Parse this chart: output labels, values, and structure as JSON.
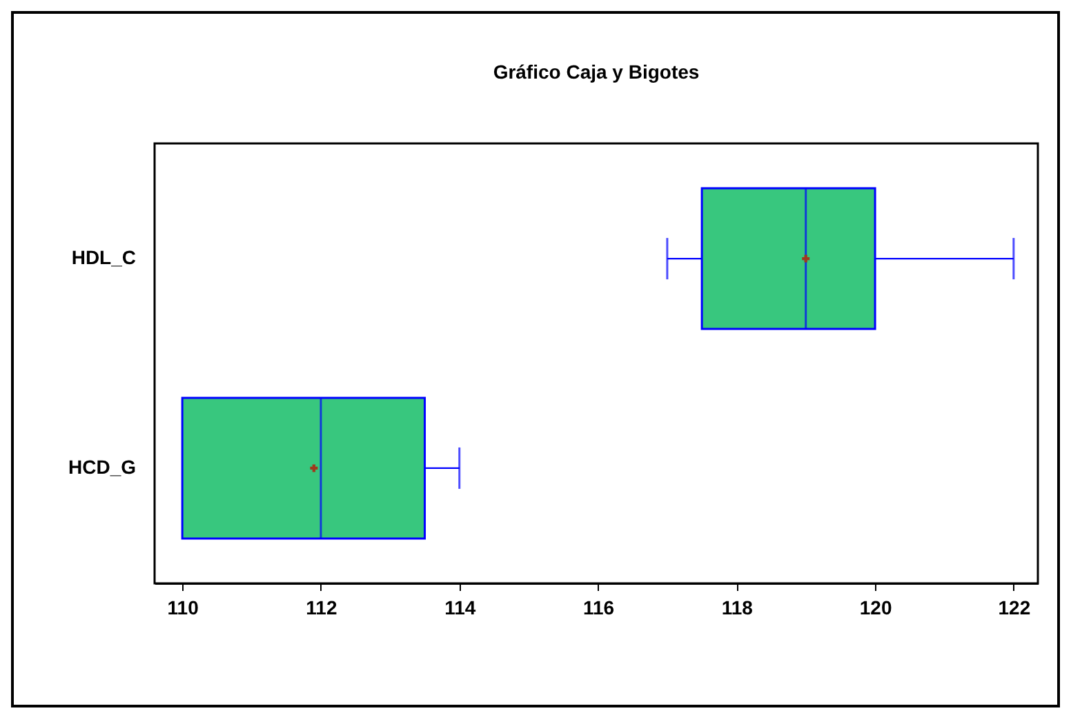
{
  "chart_data": {
    "type": "box",
    "title": "Gráfico Caja y Bigotes",
    "orientation": "horizontal",
    "categories": [
      "HDL_C",
      "HCD_G"
    ],
    "series": [
      {
        "color": "#38c77e",
        "boxes": [
          {
            "low": 117,
            "q1": 117.5,
            "median": 119,
            "q3": 120,
            "high": 122,
            "mean": 119
          },
          {
            "low": 110,
            "q1": 110,
            "median": 112,
            "q3": 113.5,
            "high": 114,
            "mean": 111.9
          }
        ]
      }
    ],
    "xlim": [
      109.6,
      122.35
    ],
    "xticks": [
      110,
      112,
      114,
      116,
      118,
      120,
      122
    ]
  }
}
